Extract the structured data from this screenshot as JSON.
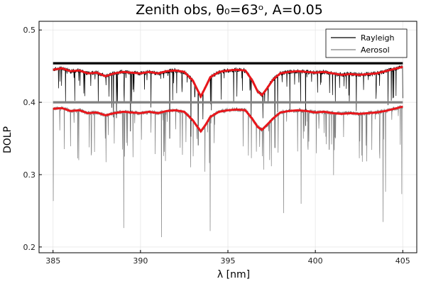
{
  "chart_data": {
    "type": "line",
    "title": "Zenith obs, θ₀=63ᵒ, A=0.05",
    "xlabel": "λ [nm]",
    "ylabel": "DOLP",
    "xlim": [
      384.2,
      405.8
    ],
    "ylim": [
      0.192,
      0.512
    ],
    "xticks": [
      385,
      390,
      395,
      400,
      405
    ],
    "xtick_labels": [
      "385",
      "390",
      "395",
      "400",
      "405"
    ],
    "yticks": [
      0.2,
      0.3,
      0.4,
      0.5
    ],
    "ytick_labels": [
      "0.2",
      "0.3",
      "0.4",
      "0.5"
    ],
    "grid": true,
    "legend_position": "top-right",
    "colors": {
      "rayleigh": "#000000",
      "aerosol": "#808080",
      "smoothed": "#e8161b"
    },
    "series": [
      {
        "name": "Rayleigh",
        "x": [
          385,
          405
        ],
        "values": [
          0.454,
          0.454
        ],
        "style": "continuum-thick"
      },
      {
        "name": "Aerosol",
        "x": [
          385,
          405
        ],
        "values": [
          0.4,
          0.4
        ],
        "style": "continuum-thick"
      },
      {
        "name": "",
        "style": "spectrum-black",
        "x": [
          385,
          385.5,
          386,
          386.5,
          387,
          387.5,
          388,
          388.5,
          389,
          389.5,
          390,
          390.5,
          391,
          391.5,
          392,
          392.5,
          393,
          393.2,
          393.45,
          393.7,
          394,
          394.5,
          395,
          395.5,
          396,
          396.4,
          396.7,
          396.95,
          397.2,
          397.6,
          398,
          398.5,
          399,
          399.5,
          400,
          400.5,
          401,
          401.5,
          402,
          402.5,
          403,
          403.5,
          404,
          404.5,
          405
        ],
        "values": [
          0.445,
          0.447,
          0.443,
          0.444,
          0.44,
          0.441,
          0.436,
          0.44,
          0.442,
          0.441,
          0.44,
          0.442,
          0.44,
          0.443,
          0.444,
          0.442,
          0.43,
          0.42,
          0.408,
          0.42,
          0.435,
          0.442,
          0.444,
          0.445,
          0.444,
          0.43,
          0.415,
          0.41,
          0.418,
          0.432,
          0.44,
          0.442,
          0.443,
          0.442,
          0.441,
          0.442,
          0.44,
          0.438,
          0.439,
          0.438,
          0.439,
          0.44,
          0.443,
          0.446,
          0.449
        ]
      },
      {
        "name": "",
        "style": "spectrum-gray",
        "x": [
          385,
          385.5,
          386,
          386.5,
          387,
          387.5,
          388,
          388.5,
          389,
          389.5,
          390,
          390.5,
          391,
          391.5,
          392,
          392.5,
          393,
          393.2,
          393.45,
          393.7,
          394,
          394.5,
          395,
          395.5,
          396,
          396.4,
          396.7,
          396.95,
          397.2,
          397.6,
          398,
          398.5,
          399,
          399.5,
          400,
          400.5,
          401,
          401.5,
          402,
          402.5,
          403,
          403.5,
          404,
          404.5,
          405
        ],
        "values": [
          0.391,
          0.392,
          0.388,
          0.389,
          0.385,
          0.386,
          0.382,
          0.385,
          0.387,
          0.386,
          0.385,
          0.387,
          0.385,
          0.388,
          0.389,
          0.387,
          0.375,
          0.368,
          0.36,
          0.368,
          0.38,
          0.387,
          0.389,
          0.39,
          0.389,
          0.377,
          0.366,
          0.362,
          0.368,
          0.378,
          0.386,
          0.388,
          0.389,
          0.388,
          0.386,
          0.387,
          0.385,
          0.384,
          0.385,
          0.384,
          0.385,
          0.386,
          0.388,
          0.391,
          0.394
        ]
      },
      {
        "name": "",
        "style": "smoothed-red",
        "x": [
          385,
          385.5,
          386,
          386.5,
          387,
          387.5,
          388,
          388.5,
          389,
          389.5,
          390,
          390.5,
          391,
          391.5,
          392,
          392.5,
          393,
          393.2,
          393.45,
          393.7,
          394,
          394.5,
          395,
          395.5,
          396,
          396.4,
          396.7,
          396.95,
          397.2,
          397.6,
          398,
          398.5,
          399,
          399.5,
          400,
          400.5,
          401,
          401.5,
          402,
          402.5,
          403,
          403.5,
          404,
          404.5,
          405
        ],
        "values": [
          0.445,
          0.447,
          0.443,
          0.444,
          0.44,
          0.441,
          0.436,
          0.44,
          0.442,
          0.441,
          0.44,
          0.442,
          0.44,
          0.443,
          0.444,
          0.442,
          0.43,
          0.42,
          0.408,
          0.42,
          0.435,
          0.442,
          0.444,
          0.445,
          0.444,
          0.43,
          0.415,
          0.41,
          0.418,
          0.432,
          0.44,
          0.442,
          0.443,
          0.442,
          0.441,
          0.442,
          0.44,
          0.438,
          0.439,
          0.438,
          0.439,
          0.44,
          0.443,
          0.446,
          0.449
        ]
      },
      {
        "name": "",
        "style": "smoothed-red",
        "x": [
          385,
          385.5,
          386,
          386.5,
          387,
          387.5,
          388,
          388.5,
          389,
          389.5,
          390,
          390.5,
          391,
          391.5,
          392,
          392.5,
          393,
          393.2,
          393.45,
          393.7,
          394,
          394.5,
          395,
          395.5,
          396,
          396.4,
          396.7,
          396.95,
          397.2,
          397.6,
          398,
          398.5,
          399,
          399.5,
          400,
          400.5,
          401,
          401.5,
          402,
          402.5,
          403,
          403.5,
          404,
          404.5,
          405
        ],
        "values": [
          0.391,
          0.392,
          0.388,
          0.389,
          0.385,
          0.386,
          0.382,
          0.385,
          0.387,
          0.386,
          0.385,
          0.387,
          0.385,
          0.388,
          0.389,
          0.387,
          0.375,
          0.368,
          0.36,
          0.368,
          0.38,
          0.387,
          0.389,
          0.39,
          0.389,
          0.377,
          0.366,
          0.362,
          0.368,
          0.378,
          0.386,
          0.388,
          0.389,
          0.388,
          0.386,
          0.387,
          0.385,
          0.384,
          0.385,
          0.384,
          0.385,
          0.386,
          0.388,
          0.391,
          0.394
        ]
      }
    ]
  }
}
